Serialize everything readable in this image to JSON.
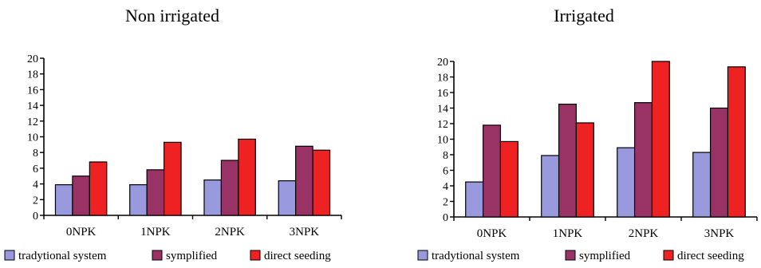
{
  "chart_data": [
    {
      "type": "bar",
      "title": "Non irrigated",
      "categories": [
        "0NPK",
        "1NPK",
        "2NPK",
        "3NPK"
      ],
      "series": [
        {
          "name": "tradytional system",
          "color": "#9999dd",
          "values": [
            3.9,
            3.9,
            4.5,
            4.4
          ]
        },
        {
          "name": "symplified",
          "color": "#993366",
          "values": [
            5.0,
            5.8,
            7.0,
            8.8
          ]
        },
        {
          "name": "direct seeding",
          "color": "#ee2222",
          "values": [
            6.8,
            9.3,
            9.7,
            8.3
          ]
        }
      ],
      "xlabel": "",
      "ylabel": "",
      "ylim": [
        0,
        20
      ],
      "yticks": [
        "0",
        "2",
        "4",
        "6",
        "8",
        "10",
        "12",
        "14",
        "16",
        "18",
        "20"
      ],
      "grid": false,
      "legend": "bottom"
    },
    {
      "type": "bar",
      "title": "Irrigated",
      "categories": [
        "0NPK",
        "1NPK",
        "2NPK",
        "3NPK"
      ],
      "series": [
        {
          "name": "tradytional system",
          "color": "#9999dd",
          "values": [
            4.5,
            7.9,
            8.9,
            8.3
          ]
        },
        {
          "name": "symplified",
          "color": "#993366",
          "values": [
            11.8,
            14.5,
            14.7,
            14.0
          ]
        },
        {
          "name": "direct seeding",
          "color": "#ee2222",
          "values": [
            9.7,
            12.1,
            20.0,
            19.3
          ]
        }
      ],
      "xlabel": "",
      "ylabel": "",
      "ylim": [
        0,
        20
      ],
      "yticks": [
        "0",
        "2",
        "4",
        "6",
        "8",
        "10",
        "12",
        "14",
        "16",
        "18",
        "20"
      ],
      "grid": false,
      "legend": "bottom"
    }
  ]
}
